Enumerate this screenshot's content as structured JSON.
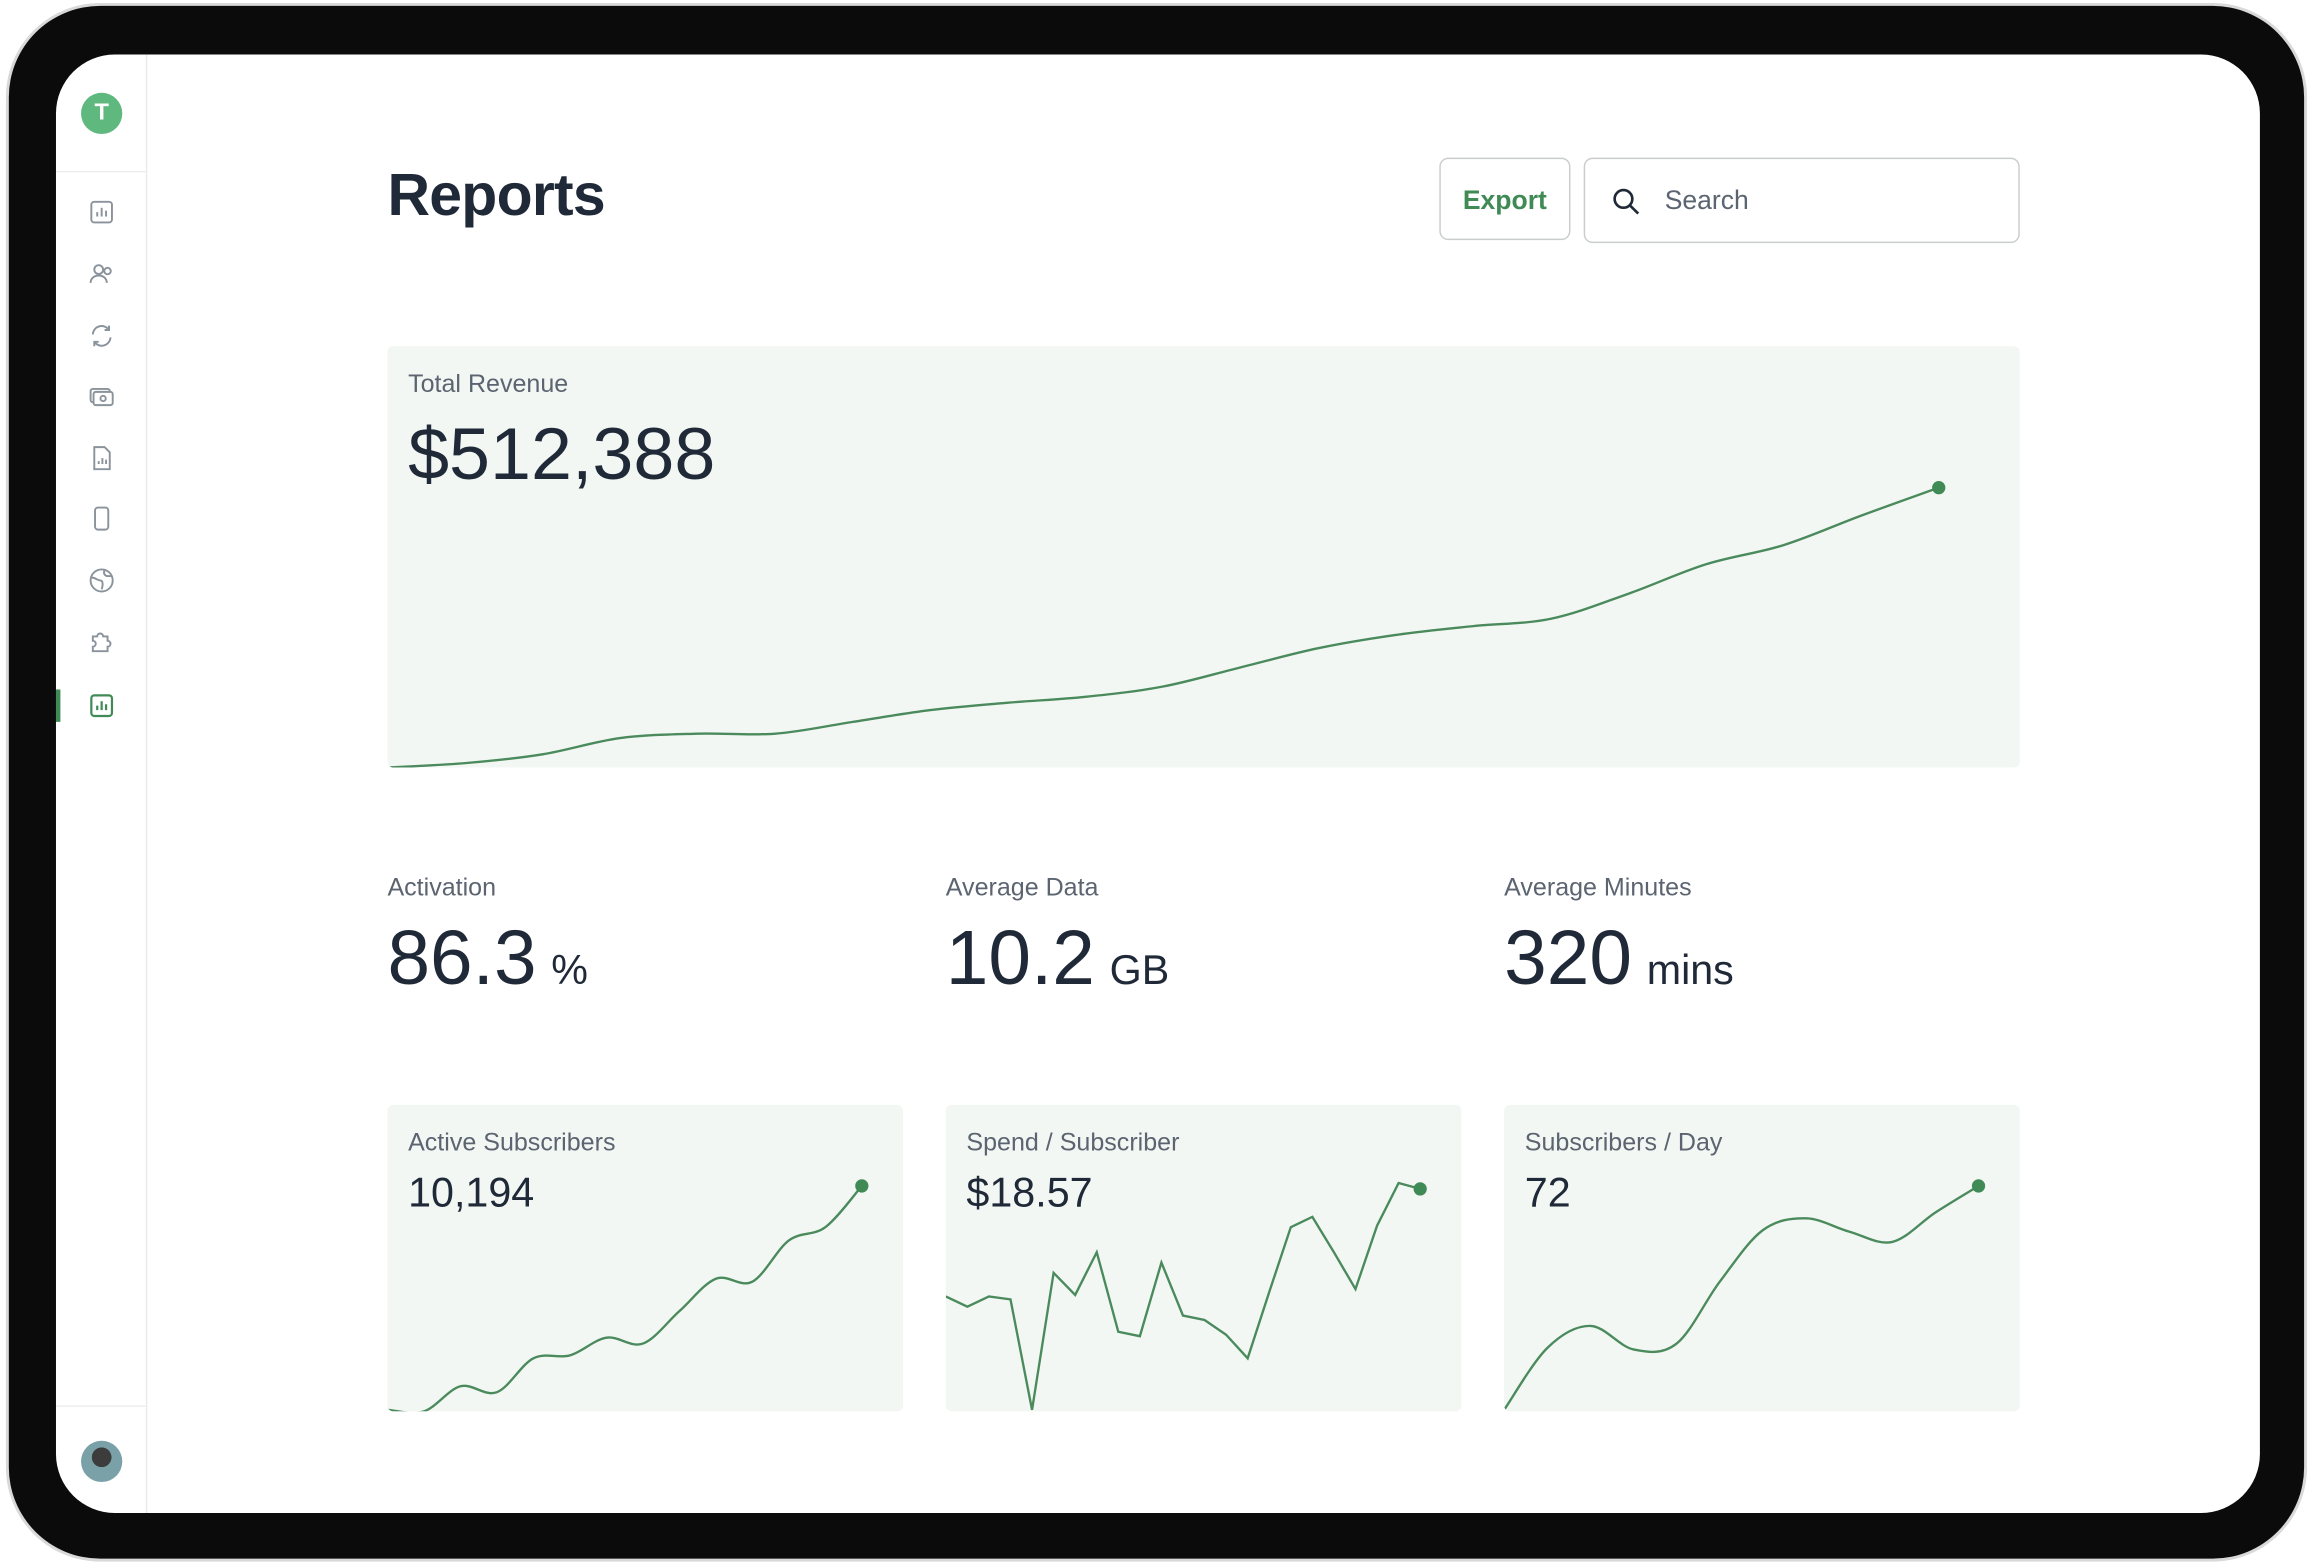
{
  "sidebar": {
    "logo": "T"
  },
  "header": {
    "title": "Reports",
    "export_button": "Export",
    "search_placeholder": "Search"
  },
  "revenue": {
    "label": "Total Revenue",
    "value": "$512,388",
    "curve": "smooth",
    "trend": [
      0,
      3,
      9,
      20,
      23,
      23,
      31,
      39,
      44,
      48,
      55,
      68,
      81,
      90,
      96,
      101,
      118,
      138,
      151,
      171,
      190
    ]
  },
  "stats": [
    {
      "label": "Activation",
      "value": "86.3",
      "unit": "%"
    },
    {
      "label": "Average Data",
      "value": "10.2",
      "unit": "GB"
    },
    {
      "label": "Average Minutes",
      "value": "320",
      "unit": "mins"
    }
  ],
  "cards": [
    {
      "label": "Active Subscribers",
      "value": "10,194",
      "curve": "smooth",
      "trend": [
        1,
        0,
        17,
        13,
        36,
        38,
        50,
        46,
        68,
        90,
        88,
        116,
        125,
        153
      ]
    },
    {
      "label": "Spend / Subscriber",
      "value": "$18.57",
      "curve": "linear",
      "trend": [
        78,
        71,
        78,
        76,
        1,
        94,
        79,
        108,
        54,
        51,
        101,
        65,
        62,
        52,
        36,
        81,
        125,
        132,
        108,
        83,
        126,
        155,
        151
      ]
    },
    {
      "label": "Subscribers / Day",
      "value": "72",
      "curve": "smooth",
      "trend": [
        1,
        43,
        58,
        42,
        46,
        88,
        123,
        131,
        122,
        115,
        135,
        153
      ]
    }
  ]
}
